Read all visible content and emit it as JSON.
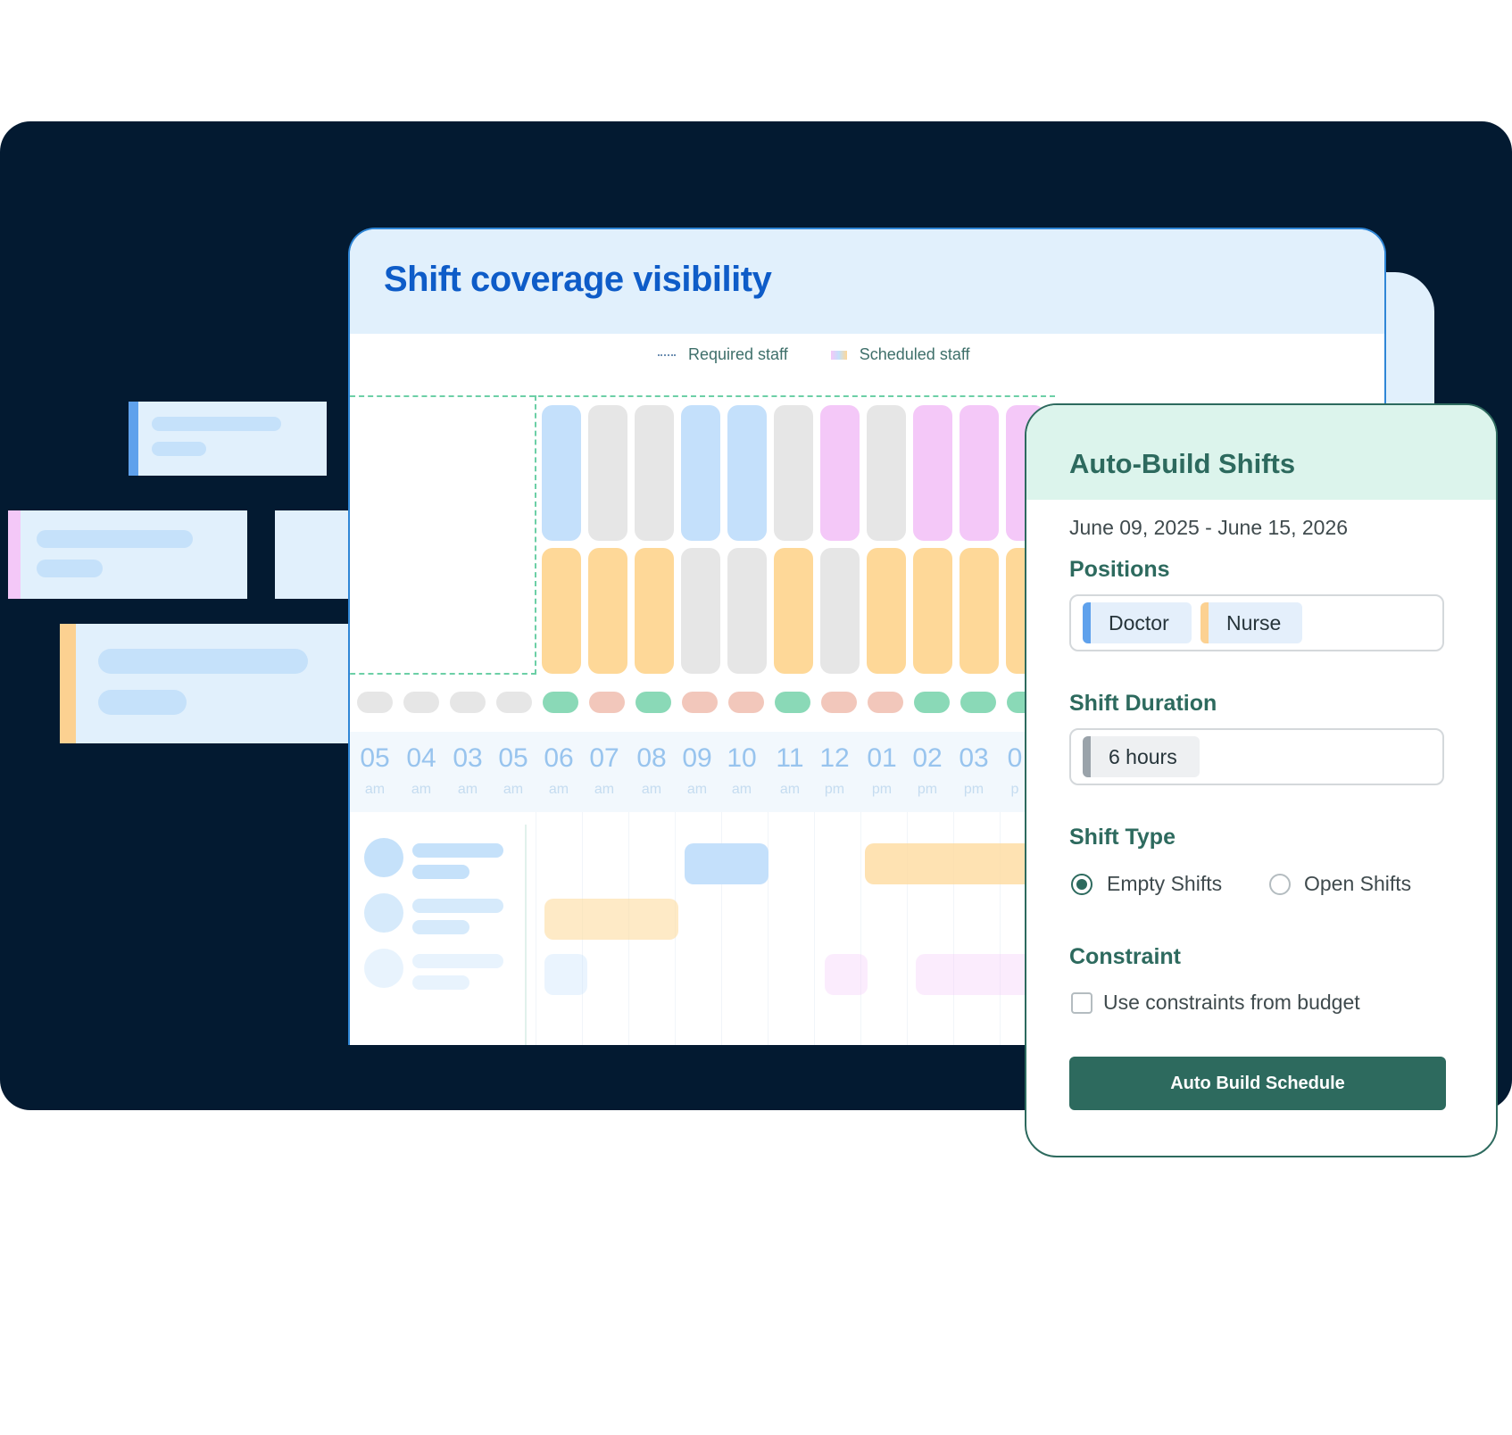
{
  "coverage": {
    "title": "Shift coverage visibility",
    "legend": {
      "required": "Required staff",
      "scheduled": "Scheduled staff"
    },
    "hours": [
      {
        "hour": "05",
        "period": "am"
      },
      {
        "hour": "04",
        "period": "am"
      },
      {
        "hour": "03",
        "period": "am"
      },
      {
        "hour": "05",
        "period": "am"
      },
      {
        "hour": "06",
        "period": "am"
      },
      {
        "hour": "07",
        "period": "am"
      },
      {
        "hour": "08",
        "period": "am"
      },
      {
        "hour": "09",
        "period": "am"
      },
      {
        "hour": "10",
        "period": "am"
      },
      {
        "hour": "11",
        "period": "am"
      },
      {
        "hour": "12",
        "period": "pm"
      },
      {
        "hour": "01",
        "period": "pm"
      },
      {
        "hour": "02",
        "period": "pm"
      },
      {
        "hour": "03",
        "period": "pm"
      },
      {
        "hour": "0",
        "period": "p"
      }
    ],
    "colors": {
      "doctor": "#c4e0fb",
      "nurse": "#fed898",
      "empty": "#e6e6e6",
      "other": "#f4c8f8",
      "ok": "#8ad9b7",
      "short": "#f2c7bb"
    }
  },
  "panel": {
    "title": "Auto-Build Shifts",
    "date_range": "June 09, 2025 - June 15, 2026",
    "positions_label": "Positions",
    "positions": [
      {
        "label": "Doctor",
        "color": "#5fa1ec"
      },
      {
        "label": "Nurse",
        "color": "#fcd191"
      }
    ],
    "duration_label": "Shift Duration",
    "duration_value": "6 hours",
    "type_label": "Shift Type",
    "type_options": [
      {
        "label": "Empty Shifts",
        "selected": true
      },
      {
        "label": "Open Shifts",
        "selected": false
      }
    ],
    "constraint_label": "Constraint",
    "constraint_option": "Use constraints from budget",
    "constraint_checked": false,
    "button_label": "Auto Build Schedule"
  }
}
